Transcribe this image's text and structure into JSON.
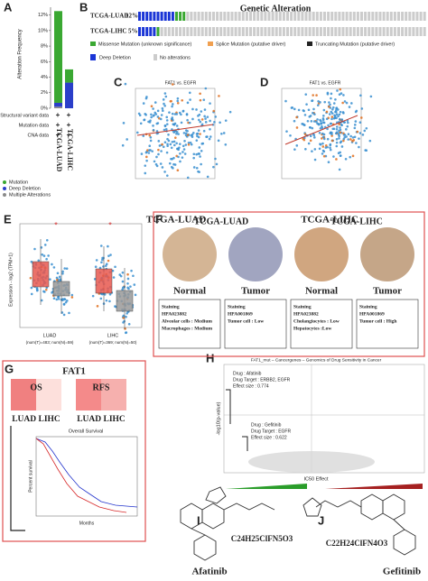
{
  "panel_labels": [
    "A",
    "B",
    "C",
    "D",
    "E",
    "F",
    "G",
    "H",
    "I",
    "J"
  ],
  "panel_a": {
    "type": "bar",
    "y_label": "Alteration Frequency",
    "ylim": [
      0,
      13
    ],
    "yticks": [
      {
        "value": 0,
        "label": "0%"
      },
      {
        "value": 2,
        "label": "2%"
      },
      {
        "value": 4,
        "label": "4%"
      },
      {
        "value": 6,
        "label": "6%"
      },
      {
        "value": 8,
        "label": "8%"
      },
      {
        "value": 10,
        "label": "10%"
      },
      {
        "value": 12,
        "label": "12%"
      }
    ],
    "categories": [
      "TCGA-LUAD",
      "TCGA-LIHC"
    ],
    "series": [
      {
        "name": "Mutation",
        "color": "#3aa832",
        "values": [
          11.8,
          1.7
        ]
      },
      {
        "name": "Deep Deletion",
        "color": "#2b3fc9",
        "values": [
          0.5,
          3.3
        ]
      },
      {
        "name": "Multiple Alterations",
        "color": "#8a8a8a",
        "values": [
          0.2,
          0
        ]
      }
    ],
    "row_labels": [
      "Structural variant data",
      "Mutation data",
      "CNA data"
    ],
    "row_marks": [
      [
        "+",
        "+"
      ],
      [
        "+",
        "+"
      ],
      [
        "+",
        "+"
      ]
    ]
  },
  "panel_b": {
    "title": "Genetic Alteration",
    "rows": [
      {
        "name": "TCGA-LUAD",
        "percent": "12%"
      },
      {
        "name": "TCGA-LIHC",
        "percent": "5%"
      }
    ],
    "legend": [
      "Missense Mutation (unknown significance)",
      "Splice Mutation (putative driver)",
      "Truncating Mutation (putative driver)",
      "Deep Deletion",
      "No alterations"
    ]
  },
  "panel_c": {
    "title": "FAT1 vs. EGFR",
    "caption": "TCGA-LUAD"
  },
  "panel_d": {
    "title": "FAT1 vs. EGFR",
    "caption": "TCGA-LIHC"
  },
  "panel_e": {
    "y_label": "Expression - log2 (TPM+1)",
    "significance": "*",
    "groups": [
      {
        "name": "LUAD",
        "n": "(num(T)=483; num(N)=59)"
      },
      {
        "name": "LIHC",
        "n": "(num(T)=369; num(N)=50)"
      }
    ]
  },
  "panel_f": {
    "headers": [
      "TCGA-LUAD",
      "TCGA-LIHC"
    ],
    "images": [
      {
        "label": "Normal",
        "staining": "Staining",
        "antibody": "HPA023882",
        "details": [
          "Alveolar cells : Medium",
          "Macrophages : Medium"
        ]
      },
      {
        "label": "Tumor",
        "staining": "Staining",
        "antibody": "HPA001869",
        "details": [
          "Tumor cell : Low"
        ]
      },
      {
        "label": "Normal",
        "staining": "Staining",
        "antibody": "HPA023882",
        "details": [
          "Cholangiocytes : Low",
          "Hepatocytes :Low"
        ]
      },
      {
        "label": "Tumor",
        "staining": "Staining",
        "antibody": "HPA001869",
        "details": [
          "Tumor cell : High"
        ]
      }
    ]
  },
  "panel_g": {
    "title": "FAT1",
    "heatmaps": [
      {
        "name": "OS",
        "columns": "LUAD LIHC"
      },
      {
        "name": "RFS",
        "columns": "LUAD LIHC"
      }
    ],
    "km_title": "Overall Survival",
    "x_label": "Months",
    "y_label": "Percent survival"
  },
  "panel_h": {
    "title": "FAT1_mut – Cancergenes – Genomics of Drug Sensitivity in Cancer",
    "y_label": "-log10(p-value)",
    "x_label": "IC50 Effect",
    "drugs": [
      {
        "drug": "Drug : Afatinib",
        "target": "Drug Target : ERBB2, EGFR",
        "effect": "Effect size : 0.774"
      },
      {
        "drug": "Drug : Gefitinib",
        "target": "Drug Target : EGFR",
        "effect": "Effect size : 0.622"
      }
    ]
  },
  "panel_i": {
    "formula": "C24H25ClFN5O3",
    "name": "Afatinib"
  },
  "panel_j": {
    "formula": "C22H24ClFN4O3",
    "name": "Gefitinib"
  }
}
